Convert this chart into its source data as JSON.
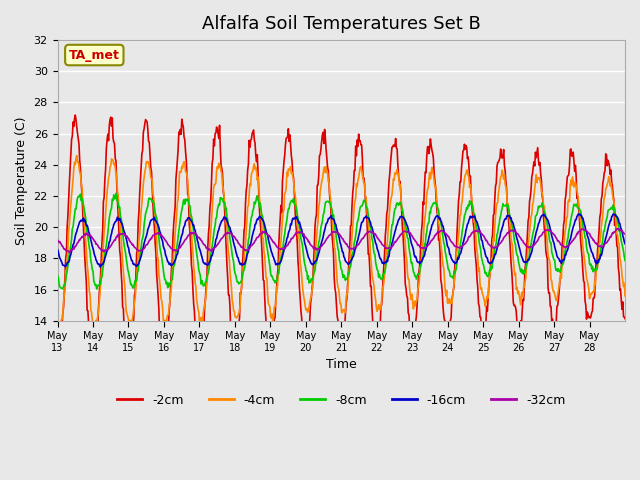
{
  "title": "Alfalfa Soil Temperatures Set B",
  "xlabel": "Time",
  "ylabel": "Soil Temperature (C)",
  "ylim": [
    14,
    32
  ],
  "background_color": "#e8e8e8",
  "plot_bg_color": "#e8e8e8",
  "grid_color": "#ffffff",
  "colors": {
    "-2cm": "#dd0000",
    "-4cm": "#ff8800",
    "-8cm": "#00cc00",
    "-16cm": "#0000cc",
    "-32cm": "#aa00aa"
  },
  "legend_labels": [
    "-2cm",
    "-4cm",
    "-8cm",
    "-16cm",
    "-32cm"
  ],
  "ta_met_label": "TA_met",
  "x_tick_labels": [
    "May 13",
    "May 14",
    "May 15",
    "May 16",
    "May 17",
    "May 18",
    "May 19",
    "May 20",
    "May 21",
    "May 22",
    "May 23",
    "May 24",
    "May 25",
    "May 26",
    "May 27",
    "May 28"
  ],
  "y_ticks": [
    14,
    16,
    18,
    20,
    22,
    24,
    26,
    28,
    30,
    32
  ],
  "n_days": 16,
  "pts_per_day": 48
}
